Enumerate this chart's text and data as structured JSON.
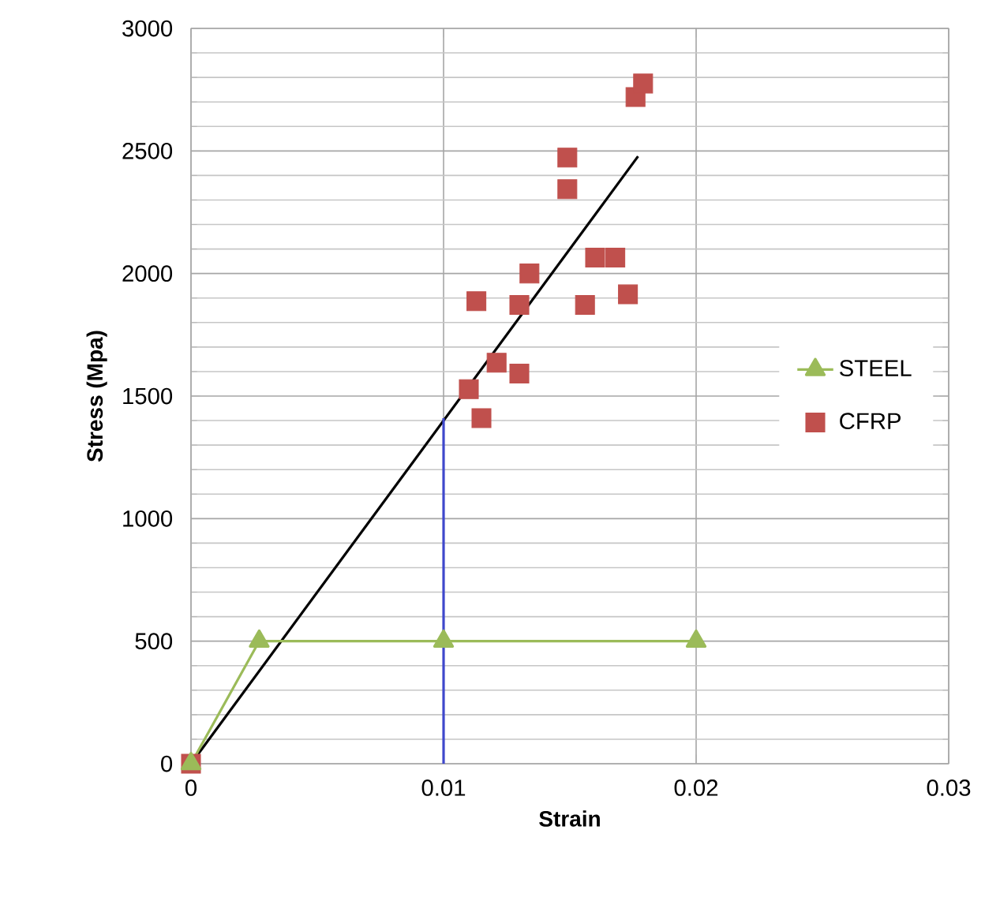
{
  "chart_data": {
    "type": "scatter",
    "xlabel": "Strain",
    "ylabel": "Stress (Mpa)",
    "xlim": [
      0,
      0.03
    ],
    "xticks": [
      0,
      0.01,
      0.02,
      0.03
    ],
    "ylim": [
      0,
      3000
    ],
    "yticks": [
      0,
      500,
      1000,
      1500,
      2000,
      2500,
      3000
    ],
    "grid": true,
    "legend": "right",
    "series": [
      {
        "type": "line",
        "color": "#000000",
        "marker": "none",
        "x": [
          0,
          0.0177
        ],
        "values": [
          0,
          2478
        ]
      },
      {
        "type": "line",
        "color": "#3f48cc",
        "marker": "none",
        "x": [
          0.01,
          0.01
        ],
        "values": [
          0,
          1410
        ]
      },
      {
        "name": "STEEL",
        "type": "line",
        "color": "#9bbb59",
        "marker": "triangle",
        "x": [
          0,
          0.0027,
          0.01,
          0.02
        ],
        "values": [
          0,
          500,
          500,
          500
        ]
      },
      {
        "name": "CFRP",
        "color": "#c0504d",
        "marker": "square",
        "x": [
          0,
          0.0113,
          0.013,
          0.0134,
          0.0149,
          0.0149,
          0.016,
          0.0168,
          0.0156,
          0.0173,
          0.011,
          0.0121,
          0.013,
          0.0115,
          0.0176,
          0.0179
        ],
        "values": [
          0,
          1887,
          1872,
          2000,
          2473,
          2344,
          2065,
          2065,
          1872,
          1915,
          1528,
          1636,
          1592,
          1410,
          2720,
          2775
        ]
      }
    ]
  }
}
